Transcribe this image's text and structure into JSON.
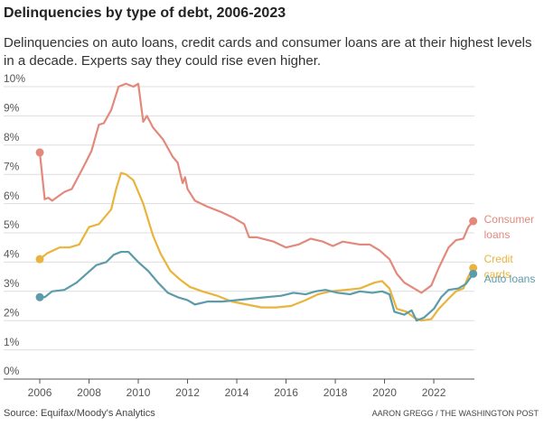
{
  "chart_data": {
    "type": "line",
    "title": "Delinquencies by type of debt, 2006-2023",
    "subtitle": "Delinquencies on auto loans, credit cards and consumer loans are at their highest levels in a decade. Experts say they could rise even higher.",
    "source": "Source: Equifax/Moody's Analytics",
    "credit": "AARON GREGG / THE WASHINGTON POST",
    "xlim": [
      2005.9,
      2023.8
    ],
    "xticks": [
      2006,
      2008,
      2010,
      2012,
      2014,
      2016,
      2018,
      2020,
      2022
    ],
    "ylim": [
      0,
      10
    ],
    "yticks": [
      {
        "value": 0,
        "label": "0%"
      },
      {
        "value": 1,
        "label": "1%"
      },
      {
        "value": 2,
        "label": "2%"
      },
      {
        "value": 3,
        "label": "3%"
      },
      {
        "value": 4,
        "label": "4%"
      },
      {
        "value": 5,
        "label": "5%"
      },
      {
        "value": 6,
        "label": "6%"
      },
      {
        "value": 7,
        "label": "7%"
      },
      {
        "value": 8,
        "label": "8%"
      },
      {
        "value": 9,
        "label": "9%"
      },
      {
        "value": 10,
        "label": "10%"
      }
    ],
    "grid": true,
    "series": [
      {
        "name": "Consumer loans",
        "color": "#e2897c",
        "x": [
          2006.0,
          2006.2,
          2006.35,
          2006.5,
          2007.0,
          2007.3,
          2007.8,
          2008.1,
          2008.4,
          2008.6,
          2008.9,
          2009.2,
          2009.5,
          2009.8,
          2010.0,
          2010.2,
          2010.35,
          2010.6,
          2011.0,
          2011.4,
          2011.6,
          2011.8,
          2011.9,
          2012.0,
          2012.3,
          2012.8,
          2013.4,
          2013.9,
          2014.3,
          2014.5,
          2014.8,
          2015.5,
          2016.0,
          2016.5,
          2017.0,
          2017.5,
          2017.9,
          2018.3,
          2019.0,
          2019.4,
          2019.8,
          2020.2,
          2020.5,
          2020.8,
          2021.2,
          2021.5,
          2021.9,
          2022.2,
          2022.6,
          2022.9,
          2023.2,
          2023.4,
          2023.6
        ],
        "values": [
          7.75,
          6.15,
          6.2,
          6.1,
          6.4,
          6.5,
          7.3,
          7.8,
          8.7,
          8.75,
          9.2,
          10.0,
          10.1,
          10.0,
          10.1,
          8.8,
          9.0,
          8.6,
          8.2,
          7.6,
          7.4,
          6.7,
          6.9,
          6.5,
          6.1,
          5.9,
          5.7,
          5.5,
          5.3,
          4.85,
          4.85,
          4.7,
          4.5,
          4.6,
          4.8,
          4.7,
          4.55,
          4.7,
          4.6,
          4.6,
          4.4,
          4.1,
          3.6,
          3.3,
          3.1,
          2.95,
          3.2,
          3.8,
          4.5,
          4.75,
          4.8,
          5.2,
          5.4
        ]
      },
      {
        "name": "Credit cards",
        "color": "#e9b43c",
        "x": [
          2006.0,
          2006.3,
          2006.8,
          2007.2,
          2007.6,
          2008.0,
          2008.4,
          2008.9,
          2009.1,
          2009.3,
          2009.5,
          2009.8,
          2010.2,
          2010.6,
          2010.9,
          2011.3,
          2011.7,
          2012.1,
          2012.6,
          2013.2,
          2013.8,
          2014.4,
          2015.0,
          2015.6,
          2016.2,
          2016.8,
          2017.3,
          2017.8,
          2018.4,
          2019.0,
          2019.6,
          2019.9,
          2020.2,
          2020.5,
          2020.9,
          2021.2,
          2021.5,
          2021.9,
          2022.2,
          2022.6,
          2022.9,
          2023.2,
          2023.4,
          2023.6
        ],
        "values": [
          4.1,
          4.3,
          4.5,
          4.5,
          4.6,
          5.2,
          5.3,
          5.8,
          6.5,
          7.05,
          7.0,
          6.8,
          6.0,
          4.9,
          4.3,
          3.7,
          3.4,
          3.15,
          3.0,
          2.85,
          2.65,
          2.55,
          2.45,
          2.45,
          2.5,
          2.7,
          2.9,
          3.0,
          3.05,
          3.1,
          3.3,
          3.35,
          3.1,
          2.4,
          2.3,
          2.1,
          2.0,
          2.05,
          2.4,
          2.75,
          3.0,
          3.1,
          3.5,
          3.8
        ]
      },
      {
        "name": "Auto loans",
        "color": "#5c9ba9",
        "x": [
          2006.0,
          2006.2,
          2006.5,
          2007.0,
          2007.5,
          2007.9,
          2008.3,
          2008.7,
          2009.0,
          2009.3,
          2009.6,
          2010.0,
          2010.4,
          2010.8,
          2011.2,
          2011.6,
          2012.0,
          2012.3,
          2012.8,
          2013.4,
          2014.0,
          2014.6,
          2015.2,
          2015.8,
          2016.3,
          2016.8,
          2017.2,
          2017.6,
          2018.1,
          2018.6,
          2019.0,
          2019.5,
          2019.9,
          2020.2,
          2020.4,
          2020.8,
          2021.1,
          2021.3,
          2021.6,
          2022.0,
          2022.3,
          2022.6,
          2023.0,
          2023.3,
          2023.6
        ],
        "values": [
          2.8,
          2.8,
          3.0,
          3.05,
          3.3,
          3.6,
          3.9,
          4.0,
          4.25,
          4.35,
          4.35,
          4.0,
          3.7,
          3.3,
          2.95,
          2.8,
          2.7,
          2.55,
          2.65,
          2.65,
          2.7,
          2.75,
          2.8,
          2.85,
          2.95,
          2.9,
          3.0,
          3.05,
          2.95,
          2.9,
          3.0,
          2.95,
          3.0,
          2.9,
          2.3,
          2.2,
          2.35,
          2.0,
          2.1,
          2.4,
          2.8,
          3.05,
          3.1,
          3.25,
          3.6
        ]
      }
    ]
  }
}
